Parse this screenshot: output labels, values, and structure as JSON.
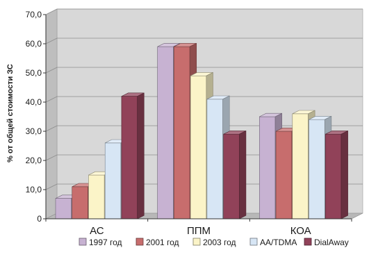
{
  "chart_data": {
    "type": "bar",
    "title": "",
    "xlabel": "",
    "ylabel": "% от общей стоимости ЗС",
    "ylim": [
      0,
      70
    ],
    "yticks": [
      "0",
      "10,0",
      "20,0",
      "30,0",
      "40,0",
      "50,0",
      "60,0",
      "70,0"
    ],
    "grid": true,
    "legend_position": "bottom",
    "categories": [
      "АС",
      "ППМ",
      "КОА"
    ],
    "series": [
      {
        "name": "1997 год",
        "color": "#c7b2d2",
        "values": [
          7,
          59,
          35
        ]
      },
      {
        "name": "2001 год",
        "color": "#c76d6d",
        "values": [
          11,
          59,
          30
        ]
      },
      {
        "name": "2003 год",
        "color": "#fbf4c8",
        "values": [
          15,
          49,
          36
        ]
      },
      {
        "name": "AA/TDMA",
        "color": "#d7e6f5",
        "values": [
          26,
          41,
          34
        ]
      },
      {
        "name": "DialAway",
        "color": "#914259",
        "values": [
          42,
          29,
          29
        ]
      }
    ],
    "wall_color": "#d8d8d8",
    "floor_color": "#b8b8b8"
  }
}
